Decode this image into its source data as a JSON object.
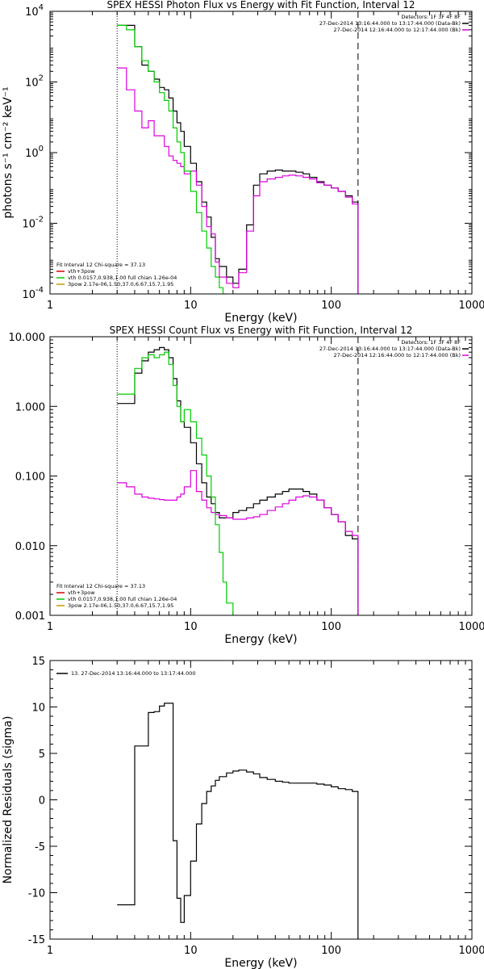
{
  "chart_data": [
    {
      "type": "line",
      "title": "SPEX HESSI Photon Flux vs Energy with Fit Function, Interval 12",
      "xlabel": "Energy (keV)",
      "ylabel": "photons s⁻¹ cm⁻² keV⁻¹",
      "xscale": "log",
      "yscale": "log",
      "xlim": [
        1,
        1000
      ],
      "ylim": [
        0.0001,
        10000
      ],
      "xticks": [
        {
          "value": 1,
          "label": "1"
        },
        {
          "value": 10,
          "label": "10"
        },
        {
          "value": 100,
          "label": "100"
        },
        {
          "value": 1000,
          "label": "1000"
        }
      ],
      "yticks": [
        {
          "value": 0.0001,
          "base": "10",
          "exp": "-4"
        },
        {
          "value": 0.01,
          "base": "10",
          "exp": "-2"
        },
        {
          "value": 1,
          "base": "10",
          "exp": "0"
        },
        {
          "value": 100,
          "base": "10",
          "exp": "2"
        },
        {
          "value": 10000,
          "base": "10",
          "exp": "4"
        }
      ],
      "vlines": [
        {
          "x": 3,
          "style": "dotted",
          "color": "#000000"
        },
        {
          "x": 155,
          "style": "dashed",
          "color": "#000000"
        }
      ],
      "legend_top_right": {
        "header": "Detectors: 1F 3F 4F 8F",
        "entries": [
          {
            "label": "27-Dec-2014 13:16:44.000 to 13:17:44.000 (Data-Bk)",
            "color": "#000000"
          },
          {
            "label": "27-Dec-2014 12:16:44.000 to 12:17:44.000 (Bk)",
            "color": "#dd00dd"
          }
        ]
      },
      "legend_bottom_left": {
        "header": "Fit Interval 12   Chi-square = 37.13",
        "entries": [
          {
            "label": "vth+3pow",
            "color": "#dd0000"
          },
          {
            "label": "vth 0.0157,0.938,1.00  full chian 1.26e-04",
            "color": "#00cc00"
          },
          {
            "label": "3pow 2.17e-06,1.50,37.0,6.67,15.7,1.95",
            "color": "#cc9900"
          }
        ]
      },
      "series": [
        {
          "name": "Data-Bk",
          "color": "#000000",
          "edges": [
            3,
            3.5,
            4,
            4.5,
            5,
            5.5,
            6,
            6.5,
            7,
            7.5,
            8,
            8.5,
            9,
            10,
            11,
            12,
            13,
            14,
            15,
            16,
            18,
            20,
            22,
            25,
            28,
            31,
            35,
            40,
            45,
            50,
            56,
            63,
            70,
            79,
            89,
            100,
            112,
            126,
            141,
            155
          ],
          "values": [
            4000,
            4000,
            1000,
            300,
            200,
            120,
            70,
            60,
            35,
            15,
            7,
            4,
            1.5,
            0.5,
            0.15,
            0.04,
            0.015,
            0.004,
            0.001,
            0.0006,
            0.0003,
            0.0002,
            0.0005,
            0.009,
            0.12,
            0.25,
            0.3,
            0.32,
            0.3,
            0.3,
            0.28,
            0.25,
            0.2,
            0.15,
            0.12,
            0.1,
            0.08,
            0.06,
            0.04
          ]
        },
        {
          "name": "Bk",
          "color": "#dd00dd",
          "edges": [
            3,
            3.5,
            4,
            4.5,
            5,
            5.5,
            6,
            6.5,
            7,
            7.5,
            8,
            8.5,
            9,
            10,
            11,
            12,
            13,
            14,
            15,
            16,
            18,
            20,
            22,
            25,
            28,
            31,
            35,
            40,
            45,
            50,
            56,
            63,
            70,
            79,
            89,
            100,
            112,
            126,
            141,
            155
          ],
          "values": [
            250,
            60,
            15,
            5,
            8,
            3,
            3,
            1.5,
            0.8,
            0.6,
            0.5,
            0.4,
            0.25,
            0.3,
            0.12,
            0.03,
            0.008,
            0.005,
            0.0008,
            0.0003,
            0.0002,
            0.00015,
            0.0004,
            0.006,
            0.06,
            0.15,
            0.18,
            0.2,
            0.22,
            0.23,
            0.22,
            0.2,
            0.18,
            0.14,
            0.12,
            0.1,
            0.08,
            0.055,
            0.035
          ]
        },
        {
          "name": "vth",
          "color": "#00cc00",
          "edges": [
            3,
            3.5,
            4,
            4.5,
            5,
            5.5,
            6,
            6.5,
            7,
            7.5,
            8,
            8.5,
            9,
            10,
            11,
            12,
            13,
            14,
            15,
            16,
            17,
            18
          ],
          "values": [
            4000,
            3000,
            1000,
            400,
            200,
            100,
            50,
            30,
            15,
            5,
            2,
            1,
            0.3,
            0.08,
            0.02,
            0.006,
            0.002,
            0.0006,
            0.0003,
            0.00015,
            0.0001
          ]
        }
      ]
    },
    {
      "type": "line",
      "title": "SPEX HESSI Count Flux vs Energy with Fit Function, Interval 12",
      "xlabel": "Energy (keV)",
      "ylabel": "",
      "xscale": "log",
      "yscale": "log",
      "xlim": [
        1,
        1000
      ],
      "ylim": [
        0.001,
        10
      ],
      "xticks": [
        {
          "value": 1,
          "label": "1"
        },
        {
          "value": 10,
          "label": "10"
        },
        {
          "value": 100,
          "label": "100"
        },
        {
          "value": 1000,
          "label": "1000"
        }
      ],
      "yticks": [
        {
          "value": 0.001,
          "label": "0.001"
        },
        {
          "value": 0.01,
          "label": "0.010"
        },
        {
          "value": 0.1,
          "label": "0.100"
        },
        {
          "value": 1,
          "label": "1.000"
        },
        {
          "value": 10,
          "label": "10.000"
        }
      ],
      "vlines": [
        {
          "x": 3,
          "style": "dotted",
          "color": "#000000"
        },
        {
          "x": 155,
          "style": "dashed",
          "color": "#000000"
        }
      ],
      "legend_top_right": {
        "header": "Detectors: 1F 3F 4F 8F",
        "entries": [
          {
            "label": "27-Dec-2014 13:16:44.000 to 13:17:44.000 (Data-Bk)",
            "color": "#000000"
          },
          {
            "label": "27-Dec-2014 12:16:44.000 to 12:17:44.000 (Bk)",
            "color": "#dd00dd"
          }
        ]
      },
      "legend_bottom_left": {
        "header": "Fit Interval 12   Chi-square = 37.13",
        "entries": [
          {
            "label": "vth+3pow",
            "color": "#dd0000"
          },
          {
            "label": "vth 0.0157,0.938,1.00  full chian 1.26e-04",
            "color": "#00cc00"
          },
          {
            "label": "3pow 2.17e-06,1.50,37.0,6.67,15.7,1.95",
            "color": "#cc9900"
          }
        ]
      },
      "series": [
        {
          "name": "Data-Bk",
          "color": "#000000",
          "edges": [
            3,
            3.5,
            4,
            4.5,
            5,
            5.5,
            6,
            6.5,
            7,
            7.5,
            8,
            8.5,
            9,
            10,
            11,
            12,
            13,
            14,
            15,
            16,
            18,
            20,
            22,
            25,
            28,
            31,
            35,
            40,
            45,
            50,
            56,
            63,
            70,
            79,
            89,
            100,
            112,
            126,
            141,
            155
          ],
          "values": [
            1.1,
            1.1,
            3,
            4.5,
            6,
            6.5,
            7,
            6.5,
            5,
            2.5,
            1.2,
            0.6,
            0.5,
            0.3,
            0.15,
            0.08,
            0.05,
            0.04,
            0.03,
            0.025,
            0.025,
            0.03,
            0.032,
            0.035,
            0.04,
            0.045,
            0.05,
            0.055,
            0.06,
            0.065,
            0.065,
            0.06,
            0.055,
            0.045,
            0.035,
            0.028,
            0.022,
            0.014,
            0.0125
          ]
        },
        {
          "name": "Bk",
          "color": "#dd00dd",
          "edges": [
            3,
            3.5,
            4,
            4.5,
            5,
            5.5,
            6,
            6.5,
            7,
            7.5,
            8,
            8.5,
            9,
            10,
            11,
            12,
            13,
            14,
            15,
            16,
            18,
            20,
            22,
            25,
            28,
            31,
            35,
            40,
            45,
            50,
            56,
            63,
            70,
            79,
            89,
            100,
            112,
            126,
            141,
            155
          ],
          "values": [
            0.08,
            0.07,
            0.055,
            0.05,
            0.048,
            0.047,
            0.046,
            0.045,
            0.045,
            0.045,
            0.05,
            0.055,
            0.07,
            0.12,
            0.06,
            0.045,
            0.035,
            0.03,
            0.028,
            0.027,
            0.025,
            0.024,
            0.024,
            0.025,
            0.026,
            0.028,
            0.032,
            0.036,
            0.04,
            0.045,
            0.05,
            0.052,
            0.05,
            0.045,
            0.035,
            0.028,
            0.022,
            0.016,
            0.014
          ]
        },
        {
          "name": "vth",
          "color": "#00cc00",
          "edges": [
            3,
            3.5,
            4,
            4.5,
            5,
            5.5,
            6,
            6.5,
            7,
            7.5,
            8,
            8.5,
            9,
            10,
            11,
            12,
            13,
            14,
            15,
            16,
            17,
            18,
            20
          ],
          "values": [
            1.5,
            1.5,
            3.5,
            5,
            5.5,
            5,
            5.5,
            6,
            4,
            2,
            1,
            0.6,
            0.9,
            0.6,
            0.35,
            0.2,
            0.1,
            0.05,
            0.02,
            0.008,
            0.003,
            0.0015
          ]
        }
      ]
    },
    {
      "type": "line",
      "title": "",
      "xlabel": "Energy (keV)",
      "ylabel": "Normalized Residuals (sigma)",
      "xscale": "log",
      "yscale": "linear",
      "xlim": [
        1,
        1000
      ],
      "ylim": [
        -15,
        15
      ],
      "xticks": [
        {
          "value": 1,
          "label": "1"
        },
        {
          "value": 10,
          "label": "10"
        },
        {
          "value": 100,
          "label": "100"
        },
        {
          "value": 1000,
          "label": "1000"
        }
      ],
      "yticks": [
        {
          "value": -15,
          "label": "-15"
        },
        {
          "value": -10,
          "label": "-10"
        },
        {
          "value": -5,
          "label": "-5"
        },
        {
          "value": 0,
          "label": "0"
        },
        {
          "value": 5,
          "label": "5"
        },
        {
          "value": 10,
          "label": "10"
        },
        {
          "value": 15,
          "label": "15"
        }
      ],
      "vlines": [],
      "legend_top_left": {
        "entries": [
          {
            "label": "13. 27-Dec-2014 13:16:44.000 to 13:17:44.000",
            "color": "#000000"
          }
        ]
      },
      "series": [
        {
          "name": "13. 27-Dec-2014 13:16:44.000 to 13:17:44.000",
          "color": "#000000",
          "edges": [
            3,
            4,
            4.5,
            5,
            5.5,
            6,
            6.5,
            7,
            7.5,
            8,
            8.5,
            9,
            10,
            11,
            12,
            13,
            14,
            15,
            16,
            18,
            20,
            22,
            25,
            28,
            31,
            35,
            40,
            45,
            50,
            56,
            63,
            70,
            79,
            89,
            100,
            112,
            126,
            141,
            155
          ],
          "values": [
            -11.3,
            5.8,
            5.8,
            9.4,
            9.5,
            10.1,
            10.4,
            10.4,
            -4.4,
            -10.6,
            -13.2,
            -10.3,
            -6.6,
            -2.6,
            -0.4,
            0.9,
            1.5,
            2.1,
            2.5,
            2.9,
            3.1,
            3.2,
            3.0,
            2.8,
            2.4,
            2.2,
            2.0,
            1.9,
            1.8,
            1.8,
            1.8,
            1.8,
            1.7,
            1.6,
            1.4,
            1.2,
            1.1,
            0.9
          ]
        }
      ]
    }
  ]
}
